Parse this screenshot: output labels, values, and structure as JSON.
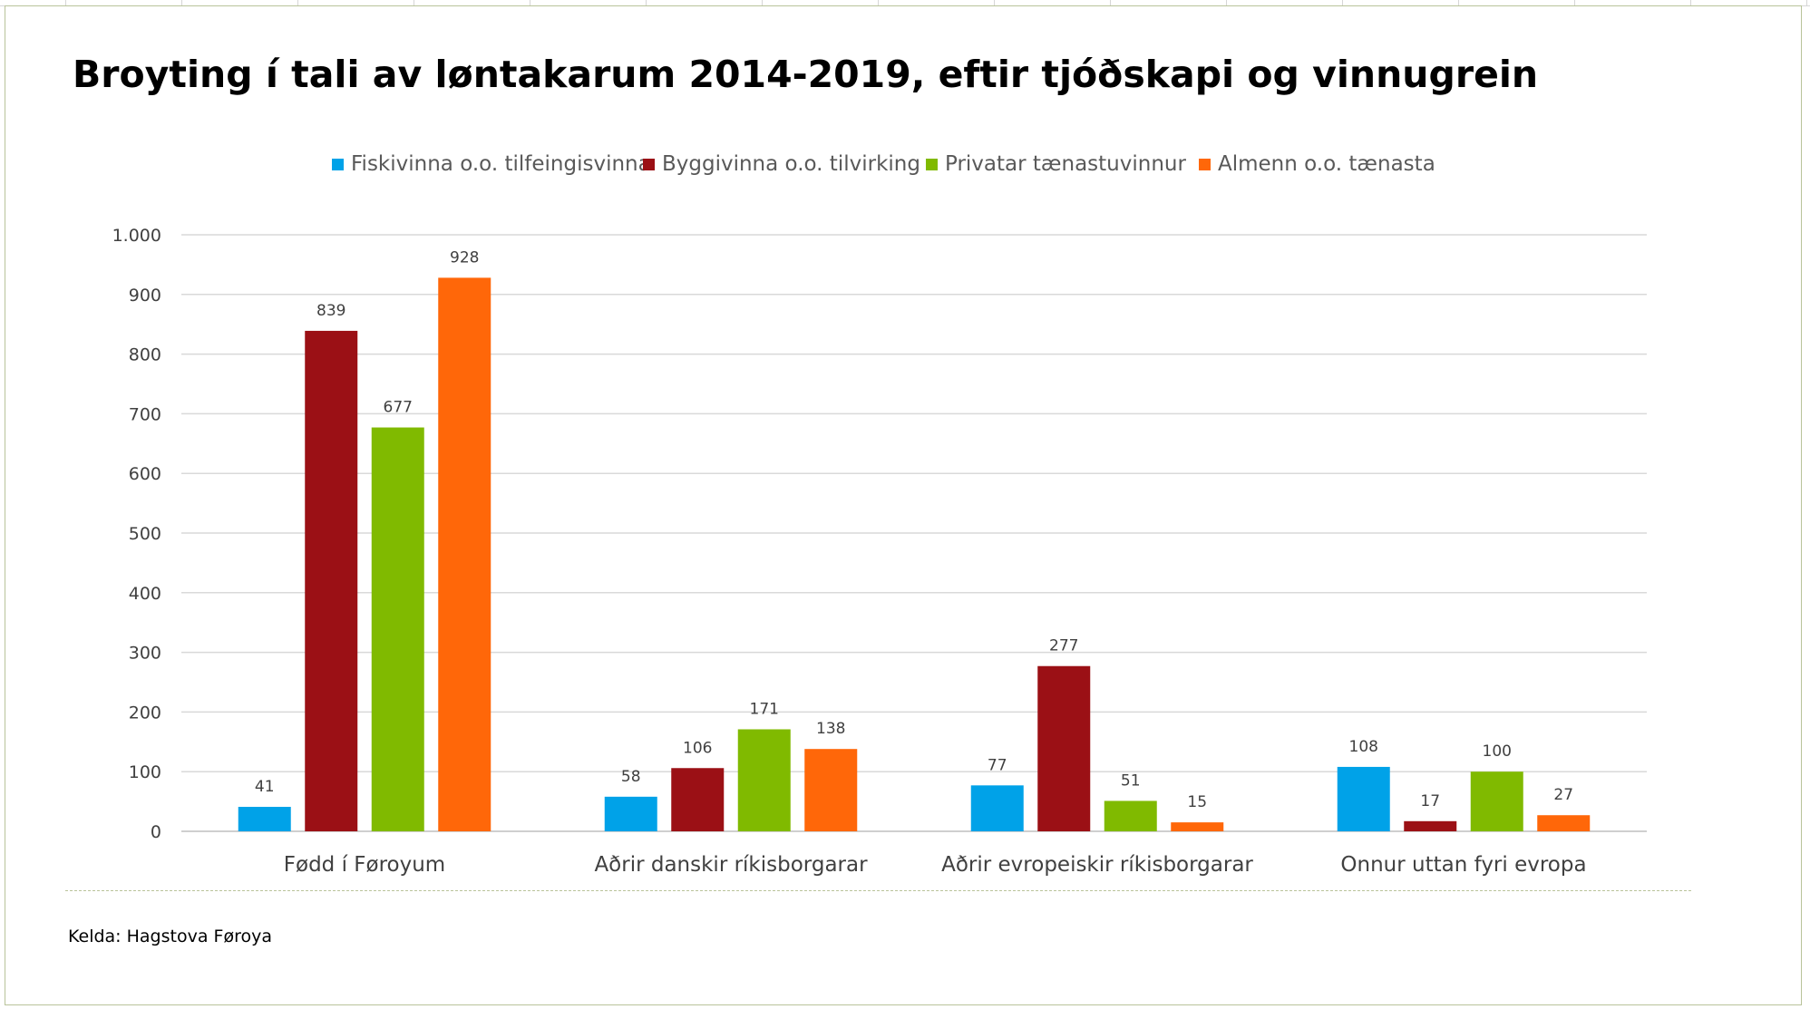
{
  "chart_data": {
    "type": "bar",
    "title": "Broyting í tali av løntakarum 2014-2019, eftir tjóðskapi og vinnugrein",
    "categories": [
      "Fødd í Føroyum",
      "Aðrir danskir ríkisborgarar",
      "Aðrir evropeiskir ríkisborgarar",
      "Onnur uttan fyri evropa"
    ],
    "series": [
      {
        "name": "Fiskivinna o.o. tilfeingisvinna",
        "color": "#00a2e8",
        "values": [
          41,
          58,
          77,
          108
        ]
      },
      {
        "name": "Byggivinna o.o. tilvirking",
        "color": "#9b1015",
        "values": [
          839,
          106,
          277,
          17
        ]
      },
      {
        "name": "Privatar tænastuvinnur",
        "color": "#80ba00",
        "values": [
          677,
          171,
          51,
          100
        ]
      },
      {
        "name": "Almenn o.o. tænasta",
        "color": "#ff6709",
        "values": [
          928,
          138,
          15,
          27
        ]
      }
    ],
    "ylim": [
      0,
      1000
    ],
    "yticks": [
      0,
      100,
      200,
      300,
      400,
      500,
      600,
      700,
      800,
      900,
      1000
    ],
    "ytick_labels": [
      "0",
      "100",
      "200",
      "300",
      "400",
      "500",
      "600",
      "700",
      "800",
      "900",
      "1.000"
    ],
    "xlabel": "",
    "ylabel": "",
    "legend": "top-center",
    "grid": true
  },
  "source": "Kelda: Hagstova Føroya"
}
